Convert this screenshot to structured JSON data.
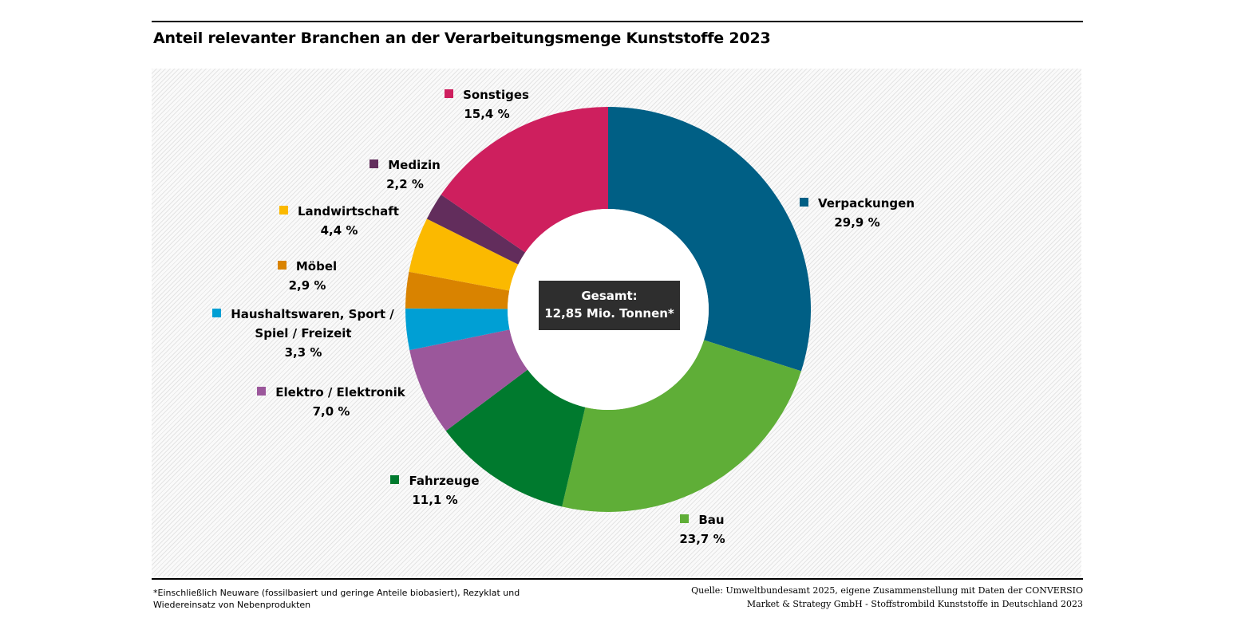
{
  "chart_data": {
    "type": "pie",
    "variant": "donut",
    "title": "Anteil relevanter Branchen an der Verarbeitungsmenge Kunststoffe 2023",
    "center_label": {
      "line1": "Gesamt:",
      "line2": "12,85 Mio. Tonnen*"
    },
    "slices": [
      {
        "name": "Verpackungen",
        "value": 29.9,
        "label": "29,9 %",
        "color": "#005f85"
      },
      {
        "name": "Bau",
        "value": 23.7,
        "label": "23,7 %",
        "color": "#5fae37"
      },
      {
        "name": "Fahrzeuge",
        "value": 11.1,
        "label": "11,1 %",
        "color": "#007a2e"
      },
      {
        "name": "Elektro / Elektronik",
        "value": 7.0,
        "label": "7,0 %",
        "color": "#9b579b"
      },
      {
        "name": "Haushaltswaren, Sport / Spiel / Freizeit",
        "name_line1": "Haushaltswaren, Sport /",
        "name_line2": "Spiel / Freizeit",
        "value": 3.3,
        "label": "3,3 %",
        "color": "#009fd4"
      },
      {
        "name": "Möbel",
        "value": 2.9,
        "label": "2,9 %",
        "color": "#d98300"
      },
      {
        "name": "Landwirtschaft",
        "value": 4.4,
        "label": "4,4 %",
        "color": "#fbb900"
      },
      {
        "name": "Medizin",
        "value": 2.2,
        "label": "2,2 %",
        "color": "#622d5c"
      },
      {
        "name": "Sonstiges",
        "value": 15.4,
        "label": "15,4 %",
        "color": "#ce1f5e"
      }
    ]
  },
  "footnote": {
    "line1": "*Einschließlich Neuware (fossilbasiert und geringe Anteile biobasiert), Rezyklat und",
    "line2": "Wiedereinsatz von Nebenprodukten"
  },
  "source": {
    "line1": "Quelle: Umweltbundesamt 2025, eigene Zusammenstellung mit Daten der CONVERSIO",
    "line2": "Market & Strategy GmbH - Stoffstrombild Kunststoffe in Deutschland 2023"
  }
}
